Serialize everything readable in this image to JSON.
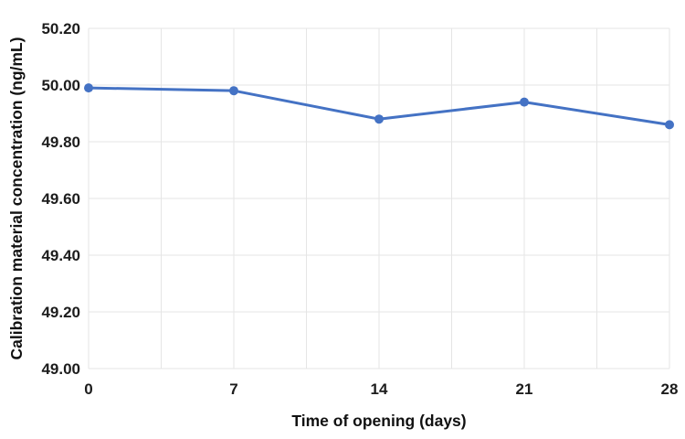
{
  "chart_data": {
    "type": "line",
    "xlabel": "Time of opening (days)",
    "ylabel": "Calibration material concentration (ng/mL)",
    "x": [
      0,
      7,
      14,
      21,
      28
    ],
    "values": [
      49.99,
      49.98,
      49.88,
      49.94,
      49.86
    ],
    "xlim": [
      0,
      28
    ],
    "ylim": [
      49.0,
      50.2
    ],
    "y_ticks": [
      "49.00",
      "49.20",
      "49.40",
      "49.60",
      "49.80",
      "50.00",
      "50.20"
    ],
    "x_ticks": [
      "0",
      "7",
      "14",
      "21",
      "28"
    ],
    "x_grid_step": 3.5,
    "grid": true,
    "legend": "none",
    "colors": {
      "line": "#4472C4",
      "marker": "#4472C4",
      "grid": "#e5e5e5",
      "tick_text": "#1c1c1c",
      "title_text": "#111111",
      "background": "#ffffff"
    }
  }
}
